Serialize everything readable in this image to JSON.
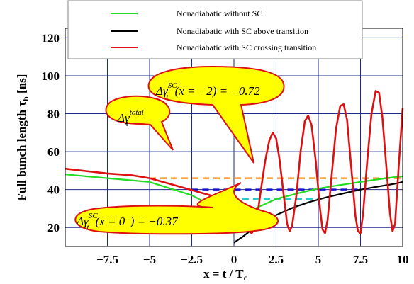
{
  "chart_data": {
    "type": "line",
    "title": "",
    "xlabel": "x = t / T",
    "xlabel_sub": "c",
    "ylabel": "Full bunch length τ",
    "ylabel_sub": "b",
    "ylabel_unit": " [ns]",
    "xlim": [
      -10,
      10
    ],
    "ylim": [
      10,
      125
    ],
    "x_ticks": [
      -7.5,
      -5,
      -2.5,
      0,
      2.5,
      5,
      7.5,
      10
    ],
    "x_tick_labels": [
      "−7.5",
      "−5",
      "−2.5",
      "0",
      "2.5",
      "5",
      "7.5",
      "10"
    ],
    "y_ticks": [
      20,
      40,
      60,
      80,
      100,
      120
    ],
    "y_tick_labels": [
      "20",
      "40",
      "60",
      "80",
      "100",
      "120"
    ],
    "grid": true,
    "grid_color": "#1e2a8c",
    "legend_position": "top",
    "series": [
      {
        "name": "Nonadiabatic without SC",
        "color": "#22dd22",
        "points": [
          [
            -10,
            48
          ],
          [
            -7.5,
            46
          ],
          [
            -5,
            44
          ],
          [
            -2.5,
            37
          ],
          [
            -1,
            30
          ],
          [
            0,
            26
          ],
          [
            0.5,
            27
          ],
          [
            1.5,
            31
          ],
          [
            2.5,
            35
          ],
          [
            4,
            38.5
          ],
          [
            5,
            40.5
          ],
          [
            6,
            42
          ],
          [
            7.5,
            44
          ],
          [
            9,
            46
          ],
          [
            10,
            47
          ]
        ]
      },
      {
        "name": "Nonadiabatic with SC above transition",
        "color": "#000000",
        "points": [
          [
            0,
            12
          ],
          [
            0.5,
            15
          ],
          [
            1,
            18.5
          ],
          [
            1.5,
            21.5
          ],
          [
            2.5,
            26.5
          ],
          [
            3.5,
            30.5
          ],
          [
            4.5,
            33.5
          ],
          [
            5.5,
            36
          ],
          [
            6.5,
            38
          ],
          [
            7.5,
            40
          ],
          [
            8.5,
            41.5
          ],
          [
            9.5,
            43
          ],
          [
            10,
            44
          ]
        ]
      },
      {
        "name": "Nonadiabatic with SC crossing transition",
        "color": "#dd1111",
        "points": [
          [
            -10,
            51
          ],
          [
            -9,
            50
          ],
          [
            -7.5,
            48.5
          ],
          [
            -6,
            47.5
          ],
          [
            -5,
            46
          ],
          [
            -4,
            43.5
          ],
          [
            -3,
            41
          ],
          [
            -2,
            38.5
          ],
          [
            -1,
            36
          ],
          [
            -0.5,
            35
          ],
          [
            0,
            34
          ],
          [
            0.3,
            33
          ],
          [
            0.5,
            28
          ],
          [
            0.7,
            22
          ],
          [
            0.9,
            18
          ],
          [
            1.05,
            17
          ],
          [
            1.2,
            19
          ],
          [
            1.4,
            27
          ],
          [
            1.6,
            40
          ],
          [
            1.85,
            55
          ],
          [
            2.1,
            66
          ],
          [
            2.3,
            70
          ],
          [
            2.5,
            67
          ],
          [
            2.7,
            56
          ],
          [
            2.95,
            37
          ],
          [
            3.15,
            22
          ],
          [
            3.3,
            18
          ],
          [
            3.45,
            21
          ],
          [
            3.7,
            37
          ],
          [
            3.95,
            60
          ],
          [
            4.2,
            76
          ],
          [
            4.4,
            79
          ],
          [
            4.6,
            74
          ],
          [
            4.85,
            55
          ],
          [
            5.1,
            30
          ],
          [
            5.25,
            19
          ],
          [
            5.4,
            17
          ],
          [
            5.55,
            24
          ],
          [
            5.8,
            48
          ],
          [
            6.05,
            72
          ],
          [
            6.3,
            84
          ],
          [
            6.5,
            85
          ],
          [
            6.7,
            77
          ],
          [
            6.95,
            52
          ],
          [
            7.2,
            26
          ],
          [
            7.35,
            18
          ],
          [
            7.5,
            17
          ],
          [
            7.65,
            27
          ],
          [
            7.9,
            55
          ],
          [
            8.15,
            80
          ],
          [
            8.4,
            92
          ],
          [
            8.6,
            91
          ],
          [
            8.8,
            78
          ],
          [
            9.05,
            50
          ],
          [
            9.25,
            27
          ],
          [
            9.4,
            18
          ],
          [
            9.55,
            22
          ],
          [
            9.75,
            50
          ],
          [
            10,
            83
          ]
        ]
      }
    ],
    "reference_lines": [
      {
        "color": "#ff9933",
        "x": [
          -5,
          10
        ],
        "y": 46
      },
      {
        "color": "#1111cc",
        "x": [
          -2.5,
          7.5
        ],
        "y": 40
      },
      {
        "color": "#22cccc",
        "x": [
          0.5,
          5
        ],
        "y": 35
      }
    ],
    "callouts": [
      {
        "text": "Δγ",
        "sup": "total",
        "sub": "t",
        "rest": "",
        "fill": "#ffff00",
        "stroke": "#dd1111"
      },
      {
        "text": "Δγ",
        "sup": "SC",
        "sub": "t",
        "rest": "(x = −2) = −0.72",
        "fill": "#ffff00",
        "stroke": "#dd1111"
      },
      {
        "text": "Δγ",
        "sup": "SC",
        "sub": "t",
        "rest": "(x = 0",
        "rest_sup": "−",
        "rest_end": ") = −0.37",
        "fill": "#ffff00",
        "stroke": "#dd1111"
      }
    ]
  }
}
